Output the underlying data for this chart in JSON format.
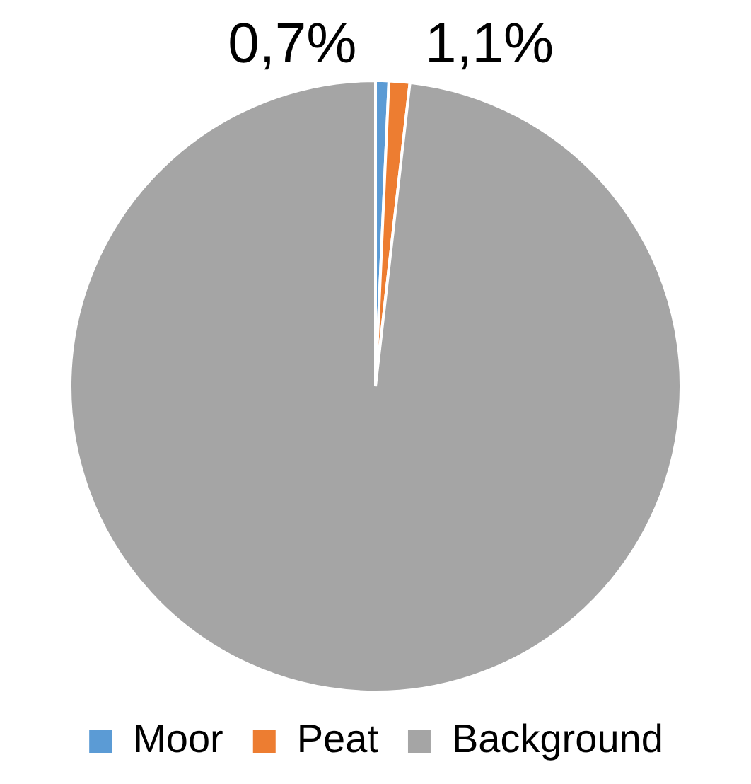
{
  "chart_data": {
    "type": "pie",
    "categories": [
      "Moor",
      "Peat",
      "Background"
    ],
    "values": [
      0.7,
      1.1,
      98.2
    ],
    "colors": [
      "#5b9bd5",
      "#ed7d31",
      "#a5a5a5"
    ],
    "value_labels": [
      "0,7%",
      "1,1%",
      null
    ],
    "legend": "bottom"
  }
}
